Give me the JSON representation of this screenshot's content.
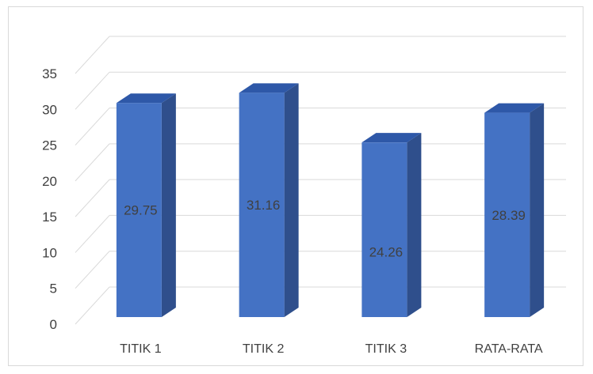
{
  "chart_data": {
    "type": "bar",
    "style": "3d-column",
    "categories": [
      "TITIK 1",
      "TITIK 2",
      "TITIK 3",
      "RATA-RATA"
    ],
    "values": [
      29.75,
      31.16,
      24.26,
      28.39
    ],
    "data_labels": [
      "29.75",
      "31.16",
      "24.26",
      "28.39"
    ],
    "yticks": [
      "0",
      "5",
      "10",
      "15",
      "20",
      "25",
      "30",
      "35"
    ],
    "ylim": [
      0,
      35
    ],
    "grid": true,
    "legend": "none",
    "colors": {
      "front": "#4472c4",
      "side": "#2f4f8c",
      "top": "#2e58a8",
      "grid": "#d9d9d9",
      "text": "#404040"
    }
  }
}
